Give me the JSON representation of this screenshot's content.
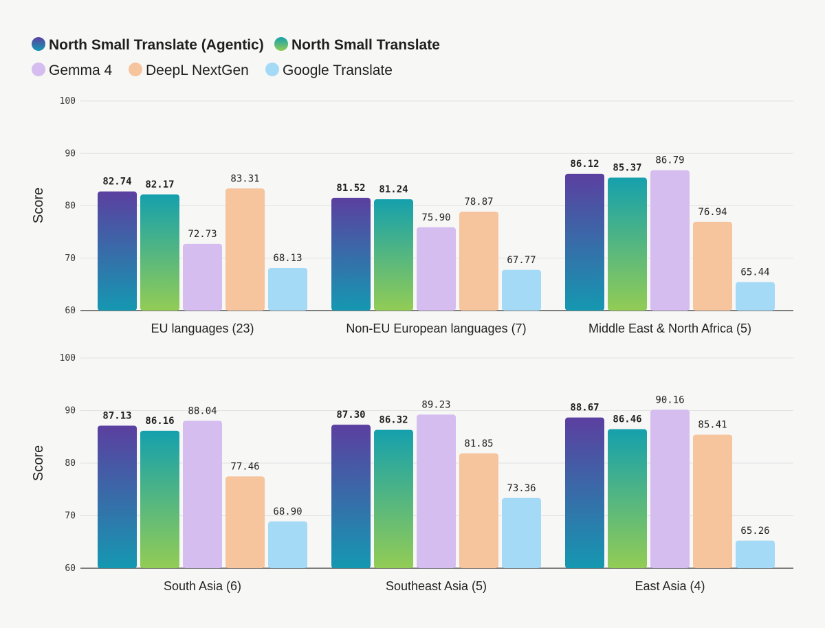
{
  "colors": {
    "north_agentic": [
      "#5b3fa0",
      "#1598b1"
    ],
    "north": [
      "#15a0ad",
      "#92cc55"
    ],
    "gemma": "#d5bdf0",
    "deepl": "#f6c49d",
    "google": "#a5daf7",
    "grid": "#e2e2e2",
    "axis": "#333333",
    "background": "#f7f7f6"
  },
  "legend": [
    {
      "label": "North Small Translate (Agentic)",
      "bold": true,
      "marker": "gradient-purple-teal"
    },
    {
      "label": "North Small Translate",
      "bold": true,
      "marker": "gradient-teal-green"
    },
    {
      "label": "Gemma 4",
      "bold": false,
      "marker": "lavender"
    },
    {
      "label": "DeepL NextGen",
      "bold": false,
      "marker": "peach"
    },
    {
      "label": "Google Translate",
      "bold": false,
      "marker": "light-blue"
    }
  ],
  "chart_data": [
    {
      "type": "bar",
      "ylabel": "Score",
      "ylim": [
        60,
        100
      ],
      "yticks": [
        60,
        70,
        80,
        90,
        100
      ],
      "categories": [
        "EU languages (23)",
        "Non-EU European languages (7)",
        "Middle East & North Africa (5)"
      ],
      "series": [
        {
          "name": "North Small Translate (Agentic)",
          "values": [
            82.74,
            81.52,
            86.12
          ],
          "labels": [
            "82.74",
            "81.52",
            "86.12"
          ]
        },
        {
          "name": "North Small Translate",
          "values": [
            82.17,
            81.24,
            85.37
          ],
          "labels": [
            "82.17",
            "81.24",
            "85.37"
          ]
        },
        {
          "name": "Gemma 4",
          "values": [
            72.73,
            75.9,
            86.79
          ],
          "labels": [
            "72.73",
            "75.90",
            "86.79"
          ]
        },
        {
          "name": "DeepL NextGen",
          "values": [
            83.31,
            78.87,
            76.94
          ],
          "labels": [
            "83.31",
            "78.87",
            "76.94"
          ]
        },
        {
          "name": "Google Translate",
          "values": [
            68.13,
            67.77,
            65.44
          ],
          "labels": [
            "68.13",
            "67.77",
            "65.44"
          ]
        }
      ]
    },
    {
      "type": "bar",
      "ylabel": "Score",
      "ylim": [
        60,
        100
      ],
      "yticks": [
        60,
        70,
        80,
        90,
        100
      ],
      "categories": [
        "South Asia (6)",
        "Southeast Asia (5)",
        "East Asia (4)"
      ],
      "series": [
        {
          "name": "North Small Translate (Agentic)",
          "values": [
            87.13,
            87.3,
            88.67
          ],
          "labels": [
            "87.13",
            "87.30",
            "88.67"
          ]
        },
        {
          "name": "North Small Translate",
          "values": [
            86.16,
            86.32,
            86.46
          ],
          "labels": [
            "86.16",
            "86.32",
            "86.46"
          ]
        },
        {
          "name": "Gemma 4",
          "values": [
            88.04,
            89.23,
            90.16
          ],
          "labels": [
            "88.04",
            "89.23",
            "90.16"
          ]
        },
        {
          "name": "DeepL NextGen",
          "values": [
            77.46,
            81.85,
            85.41
          ],
          "labels": [
            "77.46",
            "81.85",
            "85.41"
          ]
        },
        {
          "name": "Google Translate",
          "values": [
            68.9,
            73.36,
            65.26
          ],
          "labels": [
            "68.90",
            "73.36",
            "65.26"
          ]
        }
      ]
    }
  ]
}
